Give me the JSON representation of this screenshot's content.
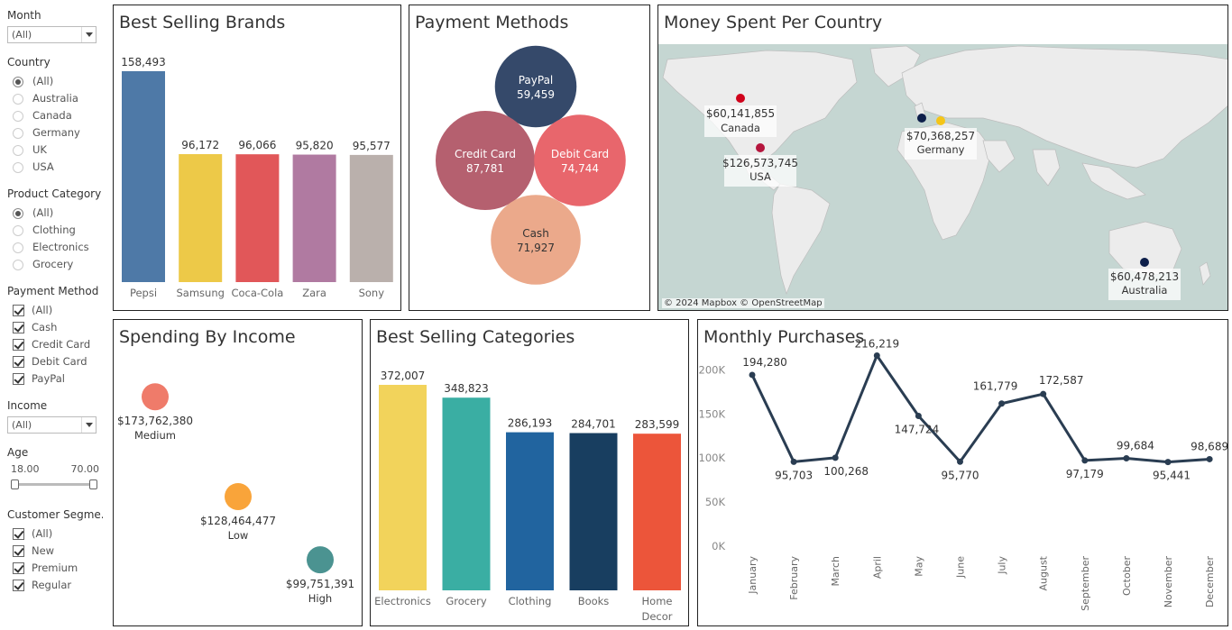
{
  "filters": {
    "month": {
      "title": "Month",
      "value": "(All)"
    },
    "country": {
      "title": "Country",
      "options": [
        "(All)",
        "Australia",
        "Canada",
        "Germany",
        "UK",
        "USA"
      ],
      "selected": 0
    },
    "product_category": {
      "title": "Product Category",
      "options": [
        "(All)",
        "Clothing",
        "Electronics",
        "Grocery"
      ],
      "selected": 0
    },
    "payment_method": {
      "title": "Payment Method",
      "options": [
        "(All)",
        "Cash",
        "Credit Card",
        "Debit Card",
        "PayPal"
      ]
    },
    "income": {
      "title": "Income",
      "value": "(All)"
    },
    "age": {
      "title": "Age",
      "min": "18.00",
      "max": "70.00"
    },
    "customer_segment": {
      "title": "Customer Segme..",
      "options": [
        "(All)",
        "New",
        "Premium",
        "Regular"
      ]
    }
  },
  "panels": {
    "brands": {
      "title": "Best Selling Brands"
    },
    "payment": {
      "title": "Payment Methods"
    },
    "map": {
      "title": "Money Spent Per Country",
      "attribution": "© 2024 Mapbox © OpenStreetMap"
    },
    "income": {
      "title": "Spending By Income"
    },
    "categories": {
      "title": "Best Selling Categories"
    },
    "monthly": {
      "title": "Monthly Purchases"
    }
  },
  "chart_data": [
    {
      "id": "brands",
      "type": "bar",
      "categories": [
        "Pepsi",
        "Samsung",
        "Coca-Cola",
        "Zara",
        "Sony"
      ],
      "values": [
        158493,
        96172,
        96066,
        95820,
        95577
      ],
      "labels": [
        "158,493",
        "96,172",
        "96,066",
        "95,820",
        "95,577"
      ],
      "colors": [
        "#4e79a7",
        "#edc948",
        "#e15759",
        "#b07aa1",
        "#bab0ac"
      ]
    },
    {
      "id": "payment",
      "type": "bubble",
      "categories": [
        "PayPal",
        "Credit Card",
        "Debit Card",
        "Cash"
      ],
      "values": [
        59459,
        87781,
        74744,
        71927
      ],
      "labels": [
        "59,459",
        "87,781",
        "74,744",
        "71,927"
      ],
      "colors": [
        "#35496a",
        "#b5606f",
        "#e8666c",
        "#eba98b"
      ]
    },
    {
      "id": "map",
      "type": "map",
      "points": [
        {
          "name": "Canada",
          "label": "$60,141,855",
          "color": "#d0021b"
        },
        {
          "name": "USA",
          "label": "$126,573,745",
          "color": "#b5153d"
        },
        {
          "name": "Germany",
          "label": "$70,368,257",
          "color": "#f5c518"
        },
        {
          "name": "UK",
          "color": "#0d1f4a"
        },
        {
          "name": "Australia",
          "label": "$60,478,213",
          "color": "#0d1f4a"
        }
      ]
    },
    {
      "id": "income",
      "type": "scatter",
      "categories": [
        "Medium",
        "Low",
        "High"
      ],
      "values": [
        173762380,
        128464477,
        99751391
      ],
      "labels": [
        "$173,762,380",
        "$128,464,477",
        "$99,751,391"
      ],
      "colors": [
        "#ef7b6a",
        "#f9a43a",
        "#4b9391"
      ]
    },
    {
      "id": "categories",
      "type": "bar",
      "categories": [
        "Electronics",
        "Grocery",
        "Clothing",
        "Books",
        "Home Decor"
      ],
      "values": [
        372007,
        348823,
        286193,
        284701,
        283599
      ],
      "labels": [
        "372,007",
        "348,823",
        "286,193",
        "284,701",
        "283,599"
      ],
      "colors": [
        "#f2d35b",
        "#3aaea3",
        "#21649f",
        "#183e60",
        "#ec553a"
      ]
    },
    {
      "id": "monthly",
      "type": "line",
      "categories": [
        "January",
        "February",
        "March",
        "April",
        "May",
        "June",
        "July",
        "August",
        "September",
        "October",
        "November",
        "December"
      ],
      "values": [
        194280,
        95703,
        100268,
        216219,
        147724,
        95770,
        161779,
        172587,
        97179,
        99684,
        95441,
        98689
      ],
      "labels": [
        "194,280",
        "95,703",
        "100,268",
        "216,219",
        "147,724",
        "95,770",
        "161,779",
        "172,587",
        "97,179",
        "99,684",
        "95,441",
        "98,689"
      ],
      "yticks": [
        "0K",
        "50K",
        "100K",
        "150K",
        "200K"
      ],
      "ylim": [
        0,
        230000
      ],
      "color": "#2a3d52"
    }
  ]
}
